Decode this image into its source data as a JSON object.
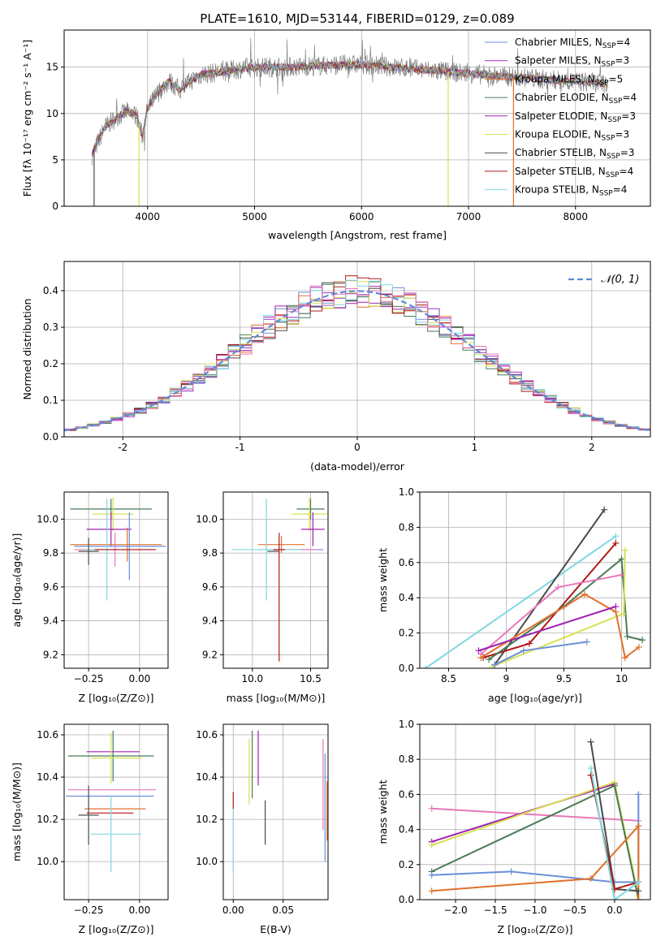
{
  "figure_title": "PLATE=1610, MJD=53144, FIBERID=0129, z=0.089",
  "colors": {
    "Chabrier MILES": "#6a8fd8",
    "Salpeter MILES": "#9b30c8",
    "Kroupa MILES": "#e0702a",
    "Chabrier ELODIE": "#4a7a54",
    "Salpeter ELODIE": "#a020b0",
    "Kroupa ELODIE": "#d8e050",
    "Chabrier STELIB": "#4a4a4a",
    "Salpeter STELIB": "#b01818",
    "Kroupa STELIB": "#7fd8e0",
    "extra_pink": "#e878b8"
  },
  "chart_data": [
    {
      "type": "line",
      "title": "PLATE=1610, MJD=53144, FIBERID=0129, z=0.089",
      "xlabel": "wavelength [Angstrom, rest frame]",
      "ylabel": "Flux [fλ 10⁻¹⁷ erg cm⁻² s⁻¹ A⁻¹]",
      "xlim": [
        3220,
        8700
      ],
      "ylim": [
        0,
        19
      ],
      "xticks": [
        4000,
        5000,
        6000,
        7000,
        8000
      ],
      "yticks": [
        0,
        5,
        10,
        15
      ],
      "legend_position": "right",
      "legend": [
        {
          "name": "Chabrier MILES, N",
          "sub": "SSP",
          "suffix": "=4",
          "color": "#6a8fd8"
        },
        {
          "name": "Salpeter MILES, N",
          "sub": "SSP",
          "suffix": "=3",
          "color": "#9b30c8"
        },
        {
          "name": "Kroupa MILES, N",
          "sub": "SSP",
          "suffix": "=5",
          "color": "#e0702a"
        },
        {
          "name": "Chabrier ELODIE, N",
          "sub": "SSP",
          "suffix": "=4",
          "color": "#4a7a54"
        },
        {
          "name": "Salpeter ELODIE, N",
          "sub": "SSP",
          "suffix": "=3",
          "color": "#a020b0"
        },
        {
          "name": "Kroupa ELODIE, N",
          "sub": "SSP",
          "suffix": "=3",
          "color": "#d8e050"
        },
        {
          "name": "Chabrier STELIB, N",
          "sub": "SSP",
          "suffix": "=3",
          "color": "#4a4a4a"
        },
        {
          "name": "Salpeter STELIB, N",
          "sub": "SSP",
          "suffix": "=4",
          "color": "#b01818"
        },
        {
          "name": "Kroupa STELIB, N",
          "sub": "SSP",
          "suffix": "=4",
          "color": "#7fd8e0"
        }
      ],
      "spectrum_knots": {
        "x": [
          3480,
          3520,
          3600,
          3700,
          3800,
          3900,
          3950,
          4000,
          4100,
          4200,
          4300,
          4400,
          4500,
          4700,
          4900,
          5100,
          5300,
          5500,
          5700,
          5900,
          6100,
          6300,
          6500,
          6700,
          6900,
          7100,
          7300,
          7500,
          7700,
          7900,
          8100,
          8300
        ],
        "y": [
          5.5,
          6.5,
          8.5,
          9.5,
          10.2,
          9.8,
          7.5,
          10.5,
          12.3,
          13.5,
          12.5,
          13.5,
          14.2,
          14.5,
          14.9,
          15.0,
          15.0,
          15.1,
          15.2,
          15.3,
          15.2,
          15.0,
          14.8,
          14.6,
          14.4,
          14.2,
          14.0,
          13.9,
          13.7,
          13.5,
          13.4,
          13.2
        ]
      },
      "spikes": [
        {
          "x": 3500,
          "y": 0,
          "color": "#4a4a4a"
        },
        {
          "x": 3920,
          "y": 0,
          "color": "#d8e050"
        },
        {
          "x": 6810,
          "y": 0,
          "color": "#d8e050"
        },
        {
          "x": 7420,
          "y": 0,
          "color": "#e0702a"
        }
      ]
    },
    {
      "type": "histogram",
      "xlabel": "(data-model)/error",
      "ylabel": "Normed distribution",
      "xlim": [
        -2.5,
        2.5
      ],
      "ylim": [
        0,
        0.48
      ],
      "xticks": [
        -2,
        -1,
        0,
        1,
        2
      ],
      "yticks": [
        0.0,
        0.1,
        0.2,
        0.3,
        0.4
      ],
      "reference_curve": {
        "label": "𝒩(0, 1)",
        "mean": 0,
        "sigma": 1,
        "color": "#5b8bd8"
      },
      "legend_position": "top-right",
      "bin_width": 0.1
    },
    {
      "type": "scatter",
      "xlabel": "Z [log₁₀(Z/Z⊙)]",
      "ylabel": "age  [log₁₀(age/yr)]",
      "xlim": [
        -0.37,
        0.14
      ],
      "ylim": [
        9.12,
        10.16
      ],
      "xticks": [
        -0.25,
        0.0
      ],
      "xticklabels": [
        "−0.25",
        "0.00"
      ],
      "yticks": [
        9.2,
        9.4,
        9.6,
        9.8,
        10.0
      ],
      "points": [
        {
          "x": -0.14,
          "y": 10.06,
          "xerr": [
            0.2,
            0.2
          ],
          "yerr": [
            0.06,
            0.06
          ],
          "color": "#4a7a54"
        },
        {
          "x": -0.13,
          "y": 10.03,
          "xerr": [
            0.1,
            0.1
          ],
          "yerr": [
            0.1,
            0.1
          ],
          "color": "#d8e050"
        },
        {
          "x": -0.14,
          "y": 9.94,
          "xerr": [
            0.12,
            0.1
          ],
          "yerr": [
            0.1,
            0.1
          ],
          "color": "#a020b0"
        },
        {
          "x": -0.06,
          "y": 9.85,
          "xerr": [
            0.28,
            0.17
          ],
          "yerr": [
            0.1,
            0.1
          ],
          "color": "#e0702a"
        },
        {
          "x": -0.05,
          "y": 9.84,
          "xerr": [
            0.27,
            0.18
          ],
          "yerr": [
            0.2,
            0.2
          ],
          "color": "#6a8fd8"
        },
        {
          "x": -0.12,
          "y": 9.82,
          "xerr": [
            0.2,
            0.2
          ],
          "yerr": [
            0.1,
            0.1
          ],
          "color": "#e878b8"
        },
        {
          "x": -0.16,
          "y": 9.82,
          "xerr": [
            0.1,
            0.1
          ],
          "yerr": [
            0.3,
            0.3
          ],
          "color": "#7fd8e0"
        },
        {
          "x": -0.07,
          "y": 9.82,
          "xerr": [
            0.15,
            0.15
          ],
          "yerr": [
            0.0,
            0.0
          ],
          "color": "#b01818"
        },
        {
          "x": -0.25,
          "y": 9.81,
          "xerr": [
            0.05,
            0.05
          ],
          "yerr": [
            0.08,
            0.08
          ],
          "color": "#4a4a4a"
        }
      ]
    },
    {
      "type": "scatter",
      "xlabel": "mass [log₁₀(M/M⊙)]",
      "ylabel": "",
      "xlim": [
        9.75,
        10.65
      ],
      "ylim": [
        9.12,
        10.16
      ],
      "xticks": [
        10.0,
        10.5
      ],
      "xticklabels": [
        "10.0",
        "10.5"
      ],
      "yticks": [
        9.2,
        9.4,
        9.6,
        9.8,
        10.0
      ],
      "points": [
        {
          "x": 10.5,
          "y": 10.06,
          "xerr": [
            0.12,
            0.12
          ],
          "yerr": [
            0.06,
            0.06
          ],
          "color": "#4a7a54"
        },
        {
          "x": 10.49,
          "y": 10.03,
          "xerr": [
            0.15,
            0.15
          ],
          "yerr": [
            0.1,
            0.1
          ],
          "color": "#d8e050"
        },
        {
          "x": 10.52,
          "y": 9.94,
          "xerr": [
            0.1,
            0.1
          ],
          "yerr": [
            0.1,
            0.1
          ],
          "color": "#a020b0"
        },
        {
          "x": 10.25,
          "y": 9.85,
          "xerr": [
            0.2,
            0.2
          ],
          "yerr": [
            0.05,
            0.05
          ],
          "color": "#e0702a"
        },
        {
          "x": 10.33,
          "y": 9.82,
          "xerr": [
            0.28,
            0.28
          ],
          "yerr": [
            0.0,
            0.0
          ],
          "color": "#6a8fd8"
        },
        {
          "x": 10.4,
          "y": 9.82,
          "xerr": [
            0.15,
            0.15
          ],
          "yerr": [
            0.0,
            0.0
          ],
          "color": "#e878b8"
        },
        {
          "x": 10.12,
          "y": 9.82,
          "xerr": [
            0.3,
            0.3
          ],
          "yerr": [
            0.3,
            0.3
          ],
          "color": "#7fd8e0"
        },
        {
          "x": 10.23,
          "y": 9.82,
          "xerr": [
            0.05,
            0.05
          ],
          "yerr": [
            0.66,
            0.1
          ],
          "color": "#b01818"
        },
        {
          "x": 10.18,
          "y": 9.81,
          "xerr": [
            0.05,
            0.05
          ],
          "yerr": [
            0.0,
            0.0
          ],
          "color": "#4a4a4a"
        }
      ]
    },
    {
      "type": "line",
      "xlabel": "age  [log₁₀(age/yr)]",
      "ylabel": "mass weight",
      "xlim": [
        8.25,
        10.25
      ],
      "ylim": [
        0,
        1.0
      ],
      "xticks": [
        8.5,
        9.0,
        9.5,
        10.0
      ],
      "yticks": [
        0.0,
        0.2,
        0.4,
        0.6,
        0.8,
        1.0
      ],
      "series": [
        {
          "color": "#7fd8e0",
          "x": [
            8.3,
            9.95
          ],
          "y": [
            0.0,
            0.75
          ]
        },
        {
          "color": "#4a4a4a",
          "x": [
            8.9,
            9.85
          ],
          "y": [
            0.02,
            0.9
          ]
        },
        {
          "color": "#b01818",
          "x": [
            8.8,
            9.2,
            9.95
          ],
          "y": [
            0.06,
            0.14,
            0.71
          ]
        },
        {
          "color": "#4a7a54",
          "x": [
            8.85,
            9.5,
            10.0,
            10.05,
            10.18
          ],
          "y": [
            0.05,
            0.35,
            0.62,
            0.18,
            0.16
          ]
        },
        {
          "color": "#e878b8",
          "x": [
            8.78,
            9.45,
            10.0
          ],
          "y": [
            0.08,
            0.46,
            0.53
          ]
        },
        {
          "color": "#d8e050",
          "x": [
            8.88,
            10.02,
            10.03
          ],
          "y": [
            0.01,
            0.31,
            0.67
          ]
        },
        {
          "color": "#e0702a",
          "x": [
            8.78,
            9.68,
            9.95,
            10.03,
            10.15
          ],
          "y": [
            0.06,
            0.42,
            0.32,
            0.06,
            0.12
          ]
        },
        {
          "color": "#6a8fd8",
          "x": [
            8.9,
            9.15,
            9.7
          ],
          "y": [
            0.02,
            0.1,
            0.15
          ]
        },
        {
          "color": "#a020b0",
          "x": [
            8.76,
            9.95
          ],
          "y": [
            0.1,
            0.35
          ]
        }
      ]
    },
    {
      "type": "scatter",
      "xlabel": "Z [log₁₀(Z/Z⊙)]",
      "ylabel": "mass [log₁₀(M/M⊙)]",
      "xlim": [
        -0.37,
        0.14
      ],
      "ylim": [
        9.82,
        10.65
      ],
      "xticks": [
        -0.25,
        0.0
      ],
      "xticklabels": [
        "−0.25",
        "0.00"
      ],
      "yticks": [
        10.0,
        10.2,
        10.4,
        10.6
      ],
      "points": [
        {
          "x": -0.1,
          "y": 10.52,
          "xerr": [
            0.16,
            0.1
          ],
          "yerr": [
            0.0,
            0.0
          ],
          "color": "#a020b0"
        },
        {
          "x": -0.13,
          "y": 10.5,
          "xerr": [
            0.22,
            0.2
          ],
          "yerr": [
            0.12,
            0.12
          ],
          "color": "#4a7a54"
        },
        {
          "x": -0.14,
          "y": 10.49,
          "xerr": [
            0.1,
            0.15
          ],
          "yerr": [
            0.12,
            0.12
          ],
          "color": "#d8e050"
        },
        {
          "x": -0.14,
          "y": 10.34,
          "xerr": [
            0.21,
            0.22
          ],
          "yerr": [
            0.0,
            0.0
          ],
          "color": "#e878b8"
        },
        {
          "x": -0.15,
          "y": 10.31,
          "xerr": [
            0.21,
            0.22
          ],
          "yerr": [
            0.0,
            0.0
          ],
          "color": "#6a8fd8"
        },
        {
          "x": -0.12,
          "y": 10.25,
          "xerr": [
            0.15,
            0.15
          ],
          "yerr": [
            0.0,
            0.0
          ],
          "color": "#e0702a"
        },
        {
          "x": -0.18,
          "y": 10.23,
          "xerr": [
            0.08,
            0.15
          ],
          "yerr": [
            0.0,
            0.0
          ],
          "color": "#b01818"
        },
        {
          "x": -0.25,
          "y": 10.22,
          "xerr": [
            0.05,
            0.05
          ],
          "yerr": [
            0.14,
            0.14
          ],
          "color": "#4a4a4a"
        },
        {
          "x": -0.14,
          "y": 10.13,
          "xerr": [
            0.1,
            0.15
          ],
          "yerr": [
            0.18,
            0.18
          ],
          "color": "#7fd8e0"
        }
      ]
    },
    {
      "type": "scatter",
      "xlabel": "E(B-V)",
      "ylabel": "",
      "xlim": [
        -0.01,
        0.095
      ],
      "ylim": [
        9.82,
        10.65
      ],
      "xticks": [
        0.0,
        0.05
      ],
      "xticklabels": [
        "0.00",
        "0.05"
      ],
      "yticks": [
        10.0,
        10.2,
        10.4,
        10.6
      ],
      "bars": [
        {
          "x": 0.0,
          "y": [
            10.25,
            10.33
          ],
          "color": "#b01818"
        },
        {
          "x": 0.0,
          "y": [
            9.95,
            10.25
          ],
          "color": "#7fd8e0"
        },
        {
          "x": 0.016,
          "y": [
            10.27,
            10.58
          ],
          "color": "#d8e050"
        },
        {
          "x": 0.019,
          "y": [
            10.3,
            10.62
          ],
          "color": "#4a7a54"
        },
        {
          "x": 0.025,
          "y": [
            10.36,
            10.62
          ],
          "color": "#a020b0"
        },
        {
          "x": 0.032,
          "y": [
            10.08,
            10.29
          ],
          "color": "#4a4a4a"
        },
        {
          "x": 0.09,
          "y": [
            10.15,
            10.58
          ],
          "color": "#e878b8"
        },
        {
          "x": 0.092,
          "y": [
            10.0,
            10.51
          ],
          "color": "#6a8fd8"
        },
        {
          "x": 0.094,
          "y": [
            10.1,
            10.38
          ],
          "color": "#e0702a"
        }
      ]
    },
    {
      "type": "line",
      "xlabel": "Z [log₁₀(Z/Z⊙)]",
      "ylabel": "mass weight",
      "xlim": [
        -2.45,
        0.45
      ],
      "ylim": [
        0,
        1.0
      ],
      "xticks": [
        -2.0,
        -1.5,
        -1.0,
        -0.5,
        0.0
      ],
      "xticklabels": [
        "−2.0",
        "−1.5",
        "−1.0",
        "−0.5",
        "0.0"
      ],
      "yticks": [
        0.0,
        0.2,
        0.4,
        0.6,
        0.8,
        1.0
      ],
      "series": [
        {
          "color": "#e878b8",
          "x": [
            -2.3,
            0.3
          ],
          "y": [
            0.52,
            0.45
          ]
        },
        {
          "color": "#a020b0",
          "x": [
            -2.3,
            0.0
          ],
          "y": [
            0.33,
            0.66
          ]
        },
        {
          "color": "#d8e050",
          "x": [
            -2.3,
            0.0,
            0.3
          ],
          "y": [
            0.31,
            0.67,
            0.02
          ]
        },
        {
          "color": "#4a7a54",
          "x": [
            -2.3,
            0.0,
            0.3
          ],
          "y": [
            0.16,
            0.65,
            0.0
          ]
        },
        {
          "color": "#6a8fd8",
          "x": [
            -2.3,
            -1.3,
            0.0,
            0.3,
            0.3
          ],
          "y": [
            0.14,
            0.16,
            0.1,
            0.1,
            0.6
          ]
        },
        {
          "color": "#e0702a",
          "x": [
            -2.3,
            -0.3,
            0.3,
            0.3
          ],
          "y": [
            0.05,
            0.12,
            0.42,
            0.0
          ]
        },
        {
          "color": "#4a4a4a",
          "x": [
            -0.3,
            0.0,
            0.3
          ],
          "y": [
            0.9,
            0.06,
            0.05
          ]
        },
        {
          "color": "#b01818",
          "x": [
            -0.3,
            0.0,
            0.3
          ],
          "y": [
            0.71,
            0.06,
            0.1
          ]
        },
        {
          "color": "#7fd8e0",
          "x": [
            -0.3,
            0.0,
            0.3
          ],
          "y": [
            0.75,
            0.0,
            0.1
          ]
        }
      ]
    }
  ]
}
